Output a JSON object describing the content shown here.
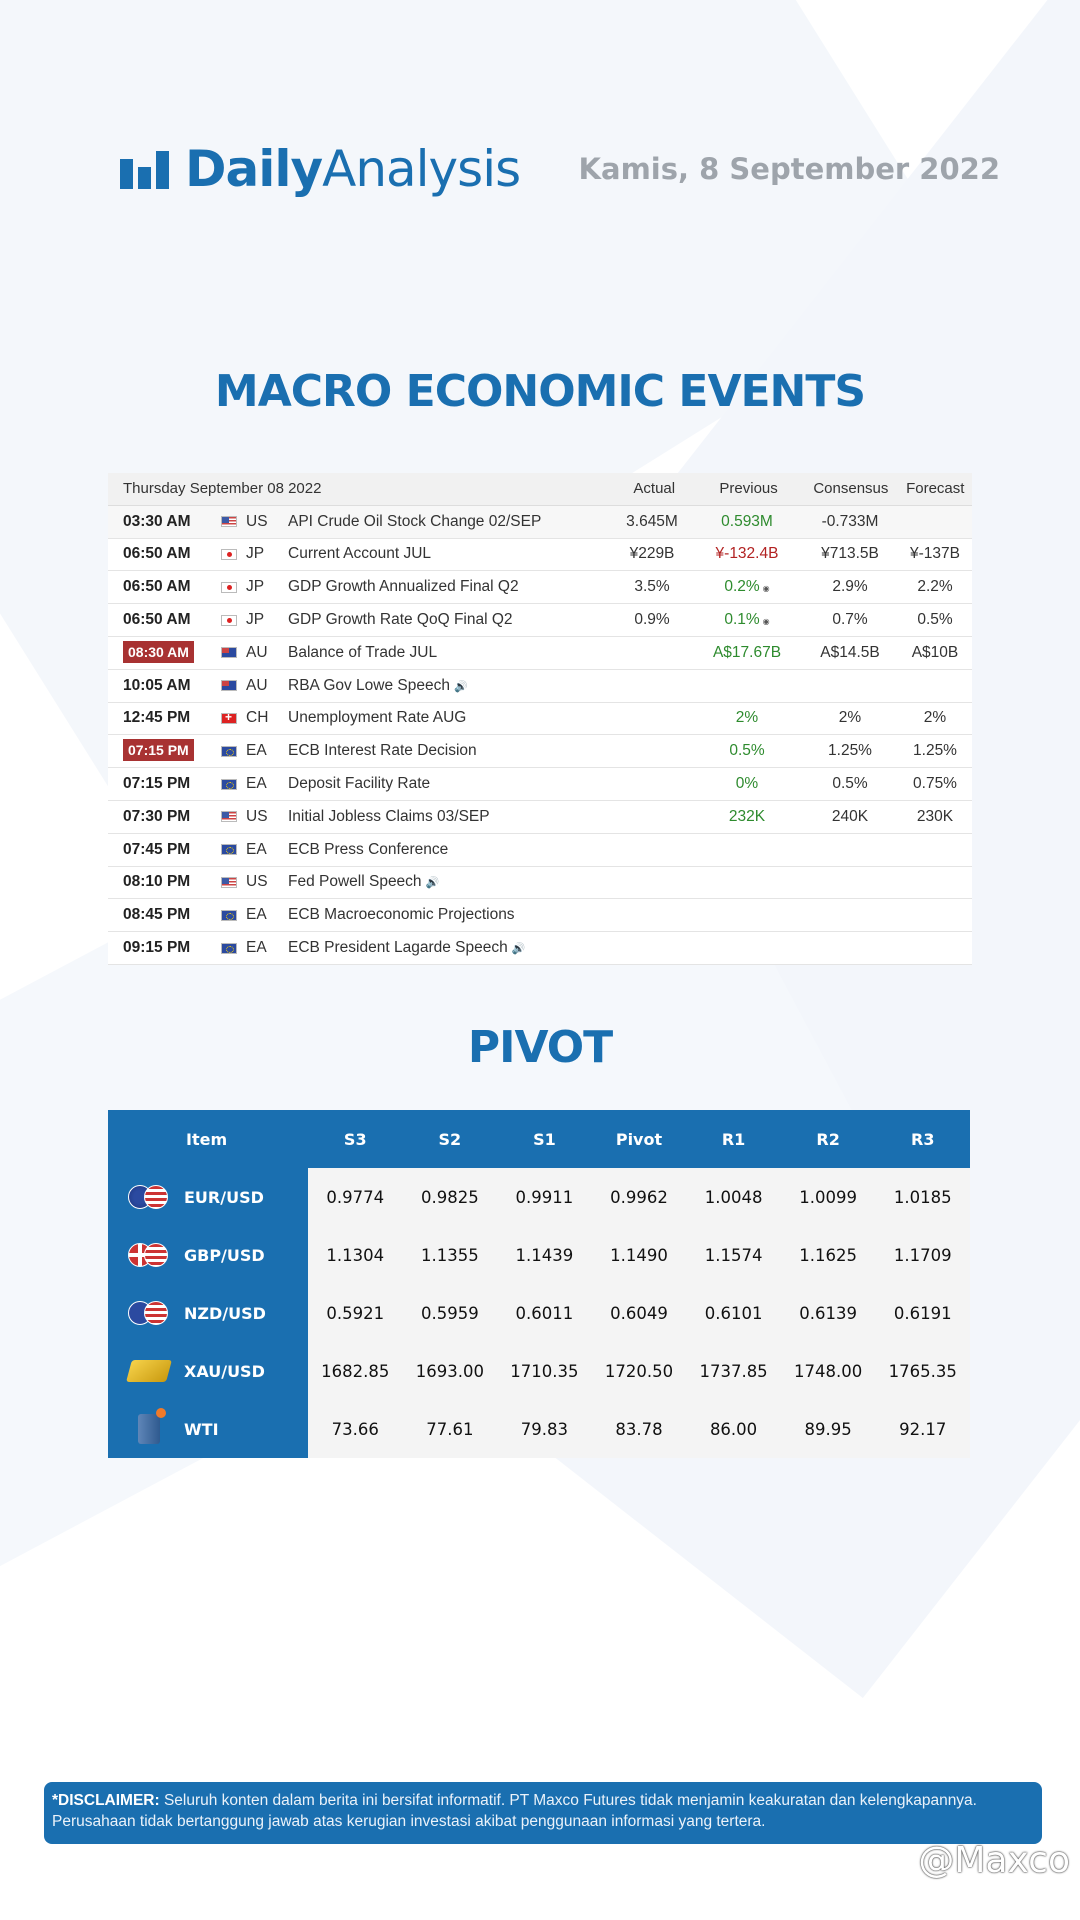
{
  "header": {
    "logo_bold": "Daily",
    "logo_light": "Analysis",
    "date": "Kamis, 8 September 2022"
  },
  "macro": {
    "title": "MACRO ECONOMIC EVENTS",
    "table_date": "Thursday September 08 2022",
    "columns": [
      "Actual",
      "Previous",
      "Consensus",
      "Forecast"
    ],
    "rows": [
      {
        "time": "03:30 AM",
        "flag": "us",
        "country": "US",
        "event": "API Crude Oil Stock Change 02/SEP",
        "actual": "3.645M",
        "previous": "0.593M",
        "consensus": "-0.733M",
        "forecast": ""
      },
      {
        "time": "06:50 AM",
        "flag": "jp",
        "country": "JP",
        "event": "Current Account JUL",
        "actual": "¥229B",
        "previous": "¥-132.4B",
        "consensus": "¥713.5B",
        "forecast": "¥-137B"
      },
      {
        "time": "06:50 AM",
        "flag": "jp",
        "country": "JP",
        "event": "GDP Growth Annualized Final Q2",
        "actual": "3.5%",
        "previous": "0.2%",
        "consensus": "2.9%",
        "forecast": "2.2%"
      },
      {
        "time": "06:50 AM",
        "flag": "jp",
        "country": "JP",
        "event": "GDP Growth Rate QoQ Final Q2",
        "actual": "0.9%",
        "previous": "0.1%",
        "consensus": "0.7%",
        "forecast": "0.5%"
      },
      {
        "time": "08:30 AM",
        "flag": "au",
        "country": "AU",
        "event": "Balance of Trade JUL",
        "actual": "",
        "previous": "A$17.67B",
        "consensus": "A$14.5B",
        "forecast": "A$10B"
      },
      {
        "time": "10:05 AM",
        "flag": "au",
        "country": "AU",
        "event": "RBA Gov Lowe Speech",
        "actual": "",
        "previous": "",
        "consensus": "",
        "forecast": ""
      },
      {
        "time": "12:45 PM",
        "flag": "ch",
        "country": "CH",
        "event": "Unemployment Rate AUG",
        "actual": "",
        "previous": "2%",
        "consensus": "2%",
        "forecast": "2%"
      },
      {
        "time": "07:15 PM",
        "flag": "ea",
        "country": "EA",
        "event": "ECB Interest Rate Decision",
        "actual": "",
        "previous": "0.5%",
        "consensus": "1.25%",
        "forecast": "1.25%"
      },
      {
        "time": "07:15 PM",
        "flag": "ea",
        "country": "EA",
        "event": "Deposit Facility Rate",
        "actual": "",
        "previous": "0%",
        "consensus": "0.5%",
        "forecast": "0.75%"
      },
      {
        "time": "07:30 PM",
        "flag": "us",
        "country": "US",
        "event": "Initial Jobless Claims 03/SEP",
        "actual": "",
        "previous": "232K",
        "consensus": "240K",
        "forecast": "230K"
      },
      {
        "time": "07:45 PM",
        "flag": "ea",
        "country": "EA",
        "event": "ECB Press Conference",
        "actual": "",
        "previous": "",
        "consensus": "",
        "forecast": ""
      },
      {
        "time": "08:10 PM",
        "flag": "us",
        "country": "US",
        "event": "Fed Powell Speech",
        "actual": "",
        "previous": "",
        "consensus": "",
        "forecast": ""
      },
      {
        "time": "08:45 PM",
        "flag": "ea",
        "country": "EA",
        "event": "ECB Macroeconomic Projections",
        "actual": "",
        "previous": "",
        "consensus": "",
        "forecast": ""
      },
      {
        "time": "09:15 PM",
        "flag": "ea",
        "country": "EA",
        "event": "ECB President Lagarde Speech",
        "actual": "",
        "previous": "",
        "consensus": "",
        "forecast": ""
      }
    ]
  },
  "pivot": {
    "title": "PIVOT",
    "columns": [
      "Item",
      "S3",
      "S2",
      "S1",
      "Pivot",
      "R1",
      "R2",
      "R3"
    ],
    "rows": [
      {
        "item": "EUR/USD",
        "icon": "eur-usd-icon",
        "values": [
          "0.9774",
          "0.9825",
          "0.9911",
          "0.9962",
          "1.0048",
          "1.0099",
          "1.0185"
        ]
      },
      {
        "item": "GBP/USD",
        "icon": "gbp-usd-icon",
        "values": [
          "1.1304",
          "1.1355",
          "1.1439",
          "1.1490",
          "1.1574",
          "1.1625",
          "1.1709"
        ]
      },
      {
        "item": "NZD/USD",
        "icon": "nzd-usd-icon",
        "values": [
          "0.5921",
          "0.5959",
          "0.6011",
          "0.6049",
          "0.6101",
          "0.6139",
          "0.6191"
        ]
      },
      {
        "item": "XAU/USD",
        "icon": "gold-bars-icon",
        "values": [
          "1682.85",
          "1693.00",
          "1710.35",
          "1720.50",
          "1737.85",
          "1748.00",
          "1765.35"
        ]
      },
      {
        "item": "WTI",
        "icon": "oil-barrel-icon",
        "values": [
          "73.66",
          "77.61",
          "79.83",
          "83.78",
          "86.00",
          "89.95",
          "92.17"
        ]
      }
    ]
  },
  "disclaimer": {
    "label": "*DISCLAIMER:",
    "text": " Seluruh konten dalam berita ini bersifat informatif. PT Maxco Futures tidak menjamin keakuratan dan kelengkapannya. Perusahaan tidak bertanggung jawab atas kerugian investasi akibat penggunaan informasi yang tertera."
  },
  "watermark": "@Maxco",
  "colors": {
    "brand": "#1a6fb0",
    "badge": "#a83232",
    "positive": "#2e8b2e",
    "negative": "#b22222"
  }
}
